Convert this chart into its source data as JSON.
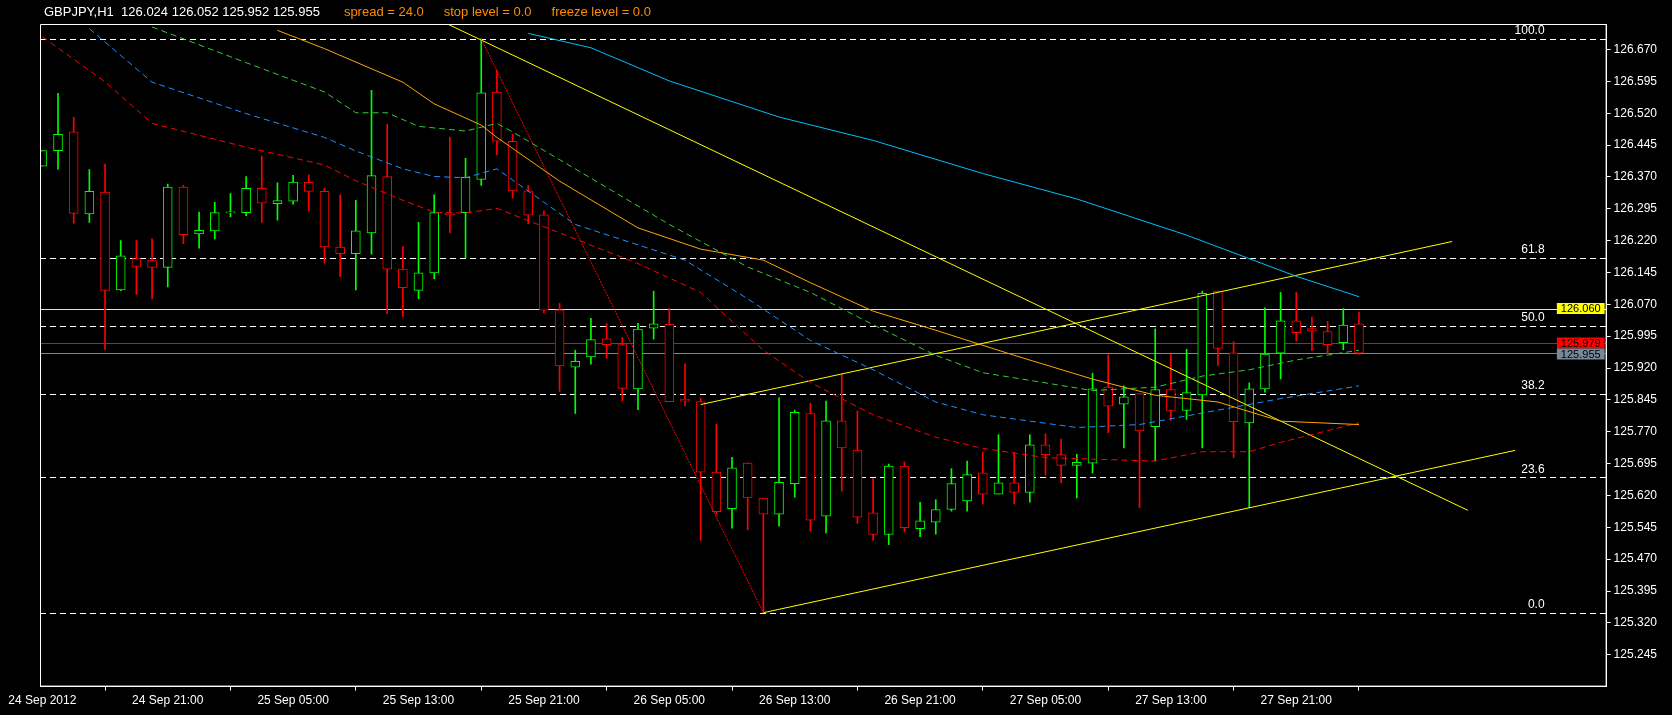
{
  "chart_data": {
    "type": "candlestick",
    "title": "GBPJPY,H1  126.024 126.052 125.952 125.955",
    "annotations": [
      "spread = 24.0",
      "stop level = 0.0",
      "freeze level = 0.0",
      {
        "text": "100.0",
        "y": 126.695
      },
      {
        "text": "61.8",
        "y": 126.179
      },
      {
        "text": "50.0",
        "y": 126.02
      },
      {
        "text": "38.2",
        "y": 125.86
      },
      {
        "text": "23.6",
        "y": 125.663
      },
      {
        "text": "0.0",
        "y": 125.344
      }
    ],
    "xlim": [
      "2012-09-24T12:51",
      "2012-09-28T16:48"
    ],
    "xticks": [
      {
        "value": "2012-09-24T13:00",
        "label": "24 Sep 2012"
      },
      {
        "value": "2012-09-24T21:00",
        "label": "24 Sep 21:00"
      },
      {
        "value": "2012-09-25T05:00",
        "label": "25 Sep 05:00"
      },
      {
        "value": "2012-09-25T13:00",
        "label": "25 Sep 13:00"
      },
      {
        "value": "2012-09-25T21:00",
        "label": "25 Sep 21:00"
      },
      {
        "value": "2012-09-26T05:00",
        "label": "26 Sep 05:00"
      },
      {
        "value": "2012-09-26T13:00",
        "label": "26 Sep 13:00"
      },
      {
        "value": "2012-09-26T21:00",
        "label": "26 Sep 21:00"
      },
      {
        "value": "2012-09-27T05:00",
        "label": "27 Sep 05:00"
      },
      {
        "value": "2012-09-27T13:00",
        "label": "27 Sep 13:00"
      },
      {
        "value": "2012-09-27T21:00",
        "label": "27 Sep 21:00"
      }
    ],
    "ylim": [
      125.17,
      126.73
    ],
    "yticks": [
      {
        "value": 125.245,
        "label": "125.245"
      },
      {
        "value": 125.32,
        "label": "125.320"
      },
      {
        "value": 125.395,
        "label": "125.395"
      },
      {
        "value": 125.47,
        "label": "125.470"
      },
      {
        "value": 125.545,
        "label": "125.545"
      },
      {
        "value": 125.62,
        "label": "125.620"
      },
      {
        "value": 125.695,
        "label": "125.695"
      },
      {
        "value": 125.77,
        "label": "125.770"
      },
      {
        "value": 125.845,
        "label": "125.845"
      },
      {
        "value": 125.92,
        "label": "125.920"
      },
      {
        "value": 125.995,
        "label": "125.995"
      },
      {
        "value": 126.07,
        "label": "126.070"
      },
      {
        "value": 126.145,
        "label": "126.145"
      },
      {
        "value": 126.22,
        "label": "126.220"
      },
      {
        "value": 126.295,
        "label": "126.295"
      },
      {
        "value": 126.37,
        "label": "126.370"
      },
      {
        "value": 126.445,
        "label": "126.445"
      },
      {
        "value": 126.52,
        "label": "126.520"
      },
      {
        "value": 126.595,
        "label": "126.595"
      },
      {
        "value": 126.67,
        "label": "126.670"
      }
    ],
    "grid": false,
    "legend": false,
    "ref_lines": [
      {
        "axis": "y",
        "value": 126.695,
        "color": "#ffffff",
        "line_style": "dashed"
      },
      {
        "axis": "y",
        "value": 126.179,
        "color": "#ffffff",
        "line_style": "dashed"
      },
      {
        "axis": "y",
        "value": 126.02,
        "color": "#ffffff",
        "line_style": "dashed"
      },
      {
        "axis": "y",
        "value": 125.86,
        "color": "#ffffff",
        "line_style": "dashed"
      },
      {
        "axis": "y",
        "value": 125.663,
        "color": "#ffffff",
        "line_style": "dashed"
      },
      {
        "axis": "y",
        "value": 125.344,
        "color": "#ffffff",
        "line_style": "dashed"
      },
      {
        "axis": "y",
        "value": 126.06,
        "label": "126.060",
        "color": "#ffff00",
        "line_style": "solid"
      },
      {
        "axis": "y",
        "value": 125.979,
        "label": "125.979",
        "color": "#ff0000",
        "line_style": "solid"
      },
      {
        "axis": "y",
        "value": 125.955,
        "label": "125.955",
        "color": "#778899",
        "line_style": "solid"
      }
    ],
    "series": [
      {
        "type": "line",
        "color": "#00bfff",
        "line_style": "solid",
        "x": [
          "2012-09-25T20:00",
          "2012-09-26T00:00",
          "2012-09-26T05:00",
          "2012-09-26T12:00",
          "2012-09-26T18:00",
          "2012-09-27T01:00",
          "2012-09-27T07:00",
          "2012-09-27T14:00",
          "2012-09-27T21:00",
          "2012-09-28T01:00"
        ],
        "values": [
          126.708,
          126.674,
          126.596,
          126.511,
          126.456,
          126.378,
          126.318,
          126.233,
          126.136,
          126.088
        ]
      },
      {
        "type": "line",
        "color": "#ffa500",
        "line_style": "solid",
        "x": [
          "2012-09-25T04:00",
          "2012-09-25T07:00",
          "2012-09-25T12:00",
          "2012-09-25T14:00",
          "2012-09-25T17:00",
          "2012-09-25T18:00",
          "2012-09-25T22:00",
          "2012-09-26T03:00",
          "2012-09-26T07:00",
          "2012-09-26T11:00",
          "2012-09-26T14:00",
          "2012-09-26T18:00",
          "2012-09-26T22:00",
          "2012-09-27T03:00",
          "2012-09-27T08:00",
          "2012-09-27T12:00",
          "2012-09-27T16:00",
          "2012-09-27T20:00",
          "2012-09-28T01:00"
        ],
        "values": [
          126.715,
          126.672,
          126.593,
          126.542,
          126.492,
          126.463,
          126.36,
          126.25,
          126.2,
          126.174,
          126.121,
          126.054,
          126.009,
          125.95,
          125.894,
          125.856,
          125.84,
          125.795,
          125.787
        ]
      },
      {
        "type": "line",
        "color": "#32cd32",
        "line_style": "dashed",
        "x": [
          "2012-09-24T20:00",
          "2012-09-25T02:00",
          "2012-09-25T07:00",
          "2012-09-25T09:00",
          "2012-09-25T11:00",
          "2012-09-25T13:00",
          "2012-09-25T16:00",
          "2012-09-25T18:00",
          "2012-09-25T19:00",
          "2012-09-26T05:00",
          "2012-09-26T10:00",
          "2012-09-26T14:00",
          "2012-09-26T18:00",
          "2012-09-26T22:00",
          "2012-09-27T01:00",
          "2012-09-27T08:00",
          "2012-09-27T12:00",
          "2012-09-27T15:00",
          "2012-09-27T18:00",
          "2012-09-27T21:00",
          "2012-09-28T01:00"
        ],
        "values": [
          126.723,
          126.639,
          126.57,
          126.521,
          126.521,
          126.489,
          126.478,
          126.496,
          126.476,
          126.258,
          126.158,
          126.098,
          126.022,
          125.95,
          125.909,
          125.867,
          125.875,
          125.901,
          125.916,
          125.939,
          125.962
        ]
      },
      {
        "type": "line",
        "color": "#1e90ff",
        "line_style": "dashed",
        "x": [
          "2012-09-24T16:00",
          "2012-09-24T20:00",
          "2012-09-25T02:00",
          "2012-09-25T07:00",
          "2012-09-25T09:00",
          "2012-09-25T12:00",
          "2012-09-25T14:00",
          "2012-09-25T16:00",
          "2012-09-25T18:00",
          "2012-09-25T23:00",
          "2012-09-26T06:00",
          "2012-09-26T10:00",
          "2012-09-26T14:00",
          "2012-09-26T18:00",
          "2012-09-26T22:00",
          "2012-09-27T01:00",
          "2012-09-27T07:00",
          "2012-09-27T11:00",
          "2012-09-27T15:00",
          "2012-09-27T20:00",
          "2012-09-28T01:00"
        ],
        "values": [
          126.719,
          126.593,
          126.519,
          126.463,
          126.431,
          126.389,
          126.371,
          126.368,
          126.389,
          126.258,
          126.174,
          126.083,
          125.985,
          125.916,
          125.84,
          125.81,
          125.78,
          125.787,
          125.814,
          125.848,
          125.878
        ]
      },
      {
        "type": "line",
        "color": "#ff0000",
        "line_style": "dashed",
        "x": [
          "2012-09-24T13:00",
          "2012-09-24T17:00",
          "2012-09-24T20:00",
          "2012-09-25T02:00",
          "2012-09-25T07:00",
          "2012-09-25T09:00",
          "2012-09-25T12:00",
          "2012-09-25T14:00",
          "2012-09-25T16:00",
          "2012-09-25T18:00",
          "2012-09-26T03:00",
          "2012-09-26T07:00",
          "2012-09-26T11:00",
          "2012-09-26T14:00",
          "2012-09-26T18:00",
          "2012-09-26T22:00",
          "2012-09-27T01:00",
          "2012-09-27T05:00",
          "2012-09-27T12:00",
          "2012-09-27T15:00",
          "2012-09-27T18:00",
          "2012-09-27T20:00",
          "2012-09-28T01:00"
        ],
        "values": [
          126.7,
          126.594,
          126.496,
          126.44,
          126.398,
          126.361,
          126.315,
          126.287,
          126.285,
          126.296,
          126.166,
          126.098,
          125.962,
          125.886,
          125.81,
          125.757,
          125.731,
          125.709,
          125.701,
          125.723,
          125.723,
          125.745,
          125.791
        ]
      },
      {
        "type": "line",
        "color": "#ff0000",
        "line_style": "dotted",
        "x": [
          "2012-09-25T17:00",
          "2012-09-26T11:00"
        ],
        "values": [
          126.695,
          125.344
        ]
      },
      {
        "type": "line",
        "color": "#ffff00",
        "line_style": "solid",
        "x": [
          "2012-09-25T14:51",
          "2012-09-28T07:57"
        ],
        "values": [
          126.73,
          125.585
        ]
      },
      {
        "type": "line",
        "color": "#ffff00",
        "line_style": "solid",
        "x": [
          "2012-09-26T07:00",
          "2012-09-28T06:57"
        ],
        "values": [
          125.834,
          126.218
        ]
      },
      {
        "type": "line",
        "color": "#ffff00",
        "line_style": "solid",
        "x": [
          "2012-09-26T11:00",
          "2012-09-28T10:57"
        ],
        "values": [
          125.344,
          125.726
        ]
      },
      {
        "x": [
          "2012-09-24T13:00",
          "2012-09-24T14:00",
          "2012-09-24T15:00",
          "2012-09-24T16:00",
          "2012-09-24T17:00",
          "2012-09-24T18:00",
          "2012-09-24T19:00",
          "2012-09-24T20:00",
          "2012-09-24T21:00",
          "2012-09-24T22:00",
          "2012-09-24T23:00",
          "2012-09-25T00:00",
          "2012-09-25T01:00",
          "2012-09-25T02:00",
          "2012-09-25T03:00",
          "2012-09-25T04:00",
          "2012-09-25T05:00",
          "2012-09-25T06:00",
          "2012-09-25T07:00",
          "2012-09-25T08:00",
          "2012-09-25T09:00",
          "2012-09-25T10:00",
          "2012-09-25T11:00",
          "2012-09-25T12:00",
          "2012-09-25T13:00",
          "2012-09-25T14:00",
          "2012-09-25T15:00",
          "2012-09-25T16:00",
          "2012-09-25T17:00",
          "2012-09-25T18:00",
          "2012-09-25T19:00",
          "2012-09-25T20:00",
          "2012-09-25T21:00",
          "2012-09-25T22:00",
          "2012-09-25T23:00",
          "2012-09-26T00:00",
          "2012-09-26T01:00",
          "2012-09-26T02:00",
          "2012-09-26T03:00",
          "2012-09-26T04:00",
          "2012-09-26T05:00",
          "2012-09-26T06:00",
          "2012-09-26T07:00",
          "2012-09-26T08:00",
          "2012-09-26T09:00",
          "2012-09-26T10:00",
          "2012-09-26T11:00",
          "2012-09-26T12:00",
          "2012-09-26T13:00",
          "2012-09-26T14:00",
          "2012-09-26T15:00",
          "2012-09-26T16:00",
          "2012-09-26T17:00",
          "2012-09-26T18:00",
          "2012-09-26T19:00",
          "2012-09-26T20:00",
          "2012-09-26T21:00",
          "2012-09-26T22:00",
          "2012-09-26T23:00",
          "2012-09-27T00:00",
          "2012-09-27T01:00",
          "2012-09-27T02:00",
          "2012-09-27T03:00",
          "2012-09-27T04:00",
          "2012-09-27T05:00",
          "2012-09-27T06:00",
          "2012-09-27T07:00",
          "2012-09-27T08:00",
          "2012-09-27T09:00",
          "2012-09-27T10:00",
          "2012-09-27T11:00",
          "2012-09-27T12:00",
          "2012-09-27T13:00",
          "2012-09-27T14:00",
          "2012-09-27T15:00",
          "2012-09-27T16:00",
          "2012-09-27T17:00",
          "2012-09-27T18:00",
          "2012-09-27T19:00",
          "2012-09-27T20:00",
          "2012-09-27T21:00",
          "2012-09-27T22:00",
          "2012-09-27T23:00",
          "2012-09-28T00:00",
          "2012-09-28T01:00"
        ],
        "ohlc": [
          [
            126.395,
            126.432,
            126.395,
            126.432
          ],
          [
            126.432,
            126.567,
            126.388,
            126.47
          ],
          [
            126.476,
            126.51,
            126.261,
            126.284
          ],
          [
            126.283,
            126.387,
            126.263,
            126.336
          ],
          [
            126.334,
            126.4,
            125.963,
            126.103
          ],
          [
            126.104,
            126.22,
            126.102,
            126.184
          ],
          [
            126.178,
            126.22,
            126.093,
            126.159
          ],
          [
            126.173,
            126.224,
            126.083,
            126.157
          ],
          [
            126.157,
            126.353,
            126.111,
            126.346
          ],
          [
            126.346,
            126.35,
            126.213,
            126.234
          ],
          [
            126.236,
            126.287,
            126.202,
            126.244
          ],
          [
            126.243,
            126.31,
            126.224,
            126.286
          ],
          [
            126.285,
            126.331,
            126.276,
            126.288
          ],
          [
            126.286,
            126.371,
            126.279,
            126.343
          ],
          [
            126.343,
            126.419,
            126.263,
            126.308
          ],
          [
            126.307,
            126.356,
            126.268,
            126.314
          ],
          [
            126.313,
            126.374,
            126.306,
            126.358
          ],
          [
            126.357,
            126.375,
            126.29,
            126.336
          ],
          [
            126.336,
            126.343,
            126.167,
            126.205
          ],
          [
            126.205,
            126.328,
            126.136,
            126.189
          ],
          [
            126.189,
            126.315,
            126.104,
            126.243
          ],
          [
            126.238,
            126.574,
            126.188,
            126.373
          ],
          [
            126.371,
            126.494,
            126.048,
            126.153
          ],
          [
            126.153,
            126.206,
            126.041,
            126.109
          ],
          [
            126.103,
            126.263,
            126.083,
            126.144
          ],
          [
            126.144,
            126.328,
            126.13,
            126.286
          ],
          [
            126.285,
            126.463,
            126.238,
            126.281
          ],
          [
            126.286,
            126.414,
            126.18,
            126.369
          ],
          [
            126.364,
            126.695,
            126.35,
            126.568
          ],
          [
            126.57,
            126.621,
            126.422,
            126.454
          ],
          [
            126.454,
            126.47,
            126.32,
            126.337
          ],
          [
            126.337,
            126.35,
            126.26,
            126.28
          ],
          [
            126.281,
            126.29,
            126.05,
            126.056
          ],
          [
            126.057,
            126.072,
            125.865,
            125.925
          ],
          [
            125.922,
            125.962,
            125.813,
            125.936
          ],
          [
            125.946,
            126.037,
            125.929,
            125.987
          ],
          [
            125.989,
            126.025,
            125.943,
            125.975
          ],
          [
            125.975,
            125.992,
            125.843,
            125.872
          ],
          [
            125.871,
            126.025,
            125.822,
            126.012
          ],
          [
            126.014,
            126.101,
            125.988,
            126.024
          ],
          [
            126.023,
            126.06,
            125.841,
            125.841
          ],
          [
            125.847,
            125.93,
            125.831,
            125.842
          ],
          [
            125.841,
            125.85,
            125.514,
            125.675
          ],
          [
            125.675,
            125.788,
            125.576,
            125.582
          ],
          [
            125.589,
            125.71,
            125.543,
            125.685
          ],
          [
            125.696,
            125.697,
            125.539,
            125.614
          ],
          [
            125.614,
            125.614,
            125.344,
            125.576
          ],
          [
            125.576,
            125.85,
            125.548,
            125.651
          ],
          [
            125.648,
            125.821,
            125.616,
            125.816
          ],
          [
            125.813,
            125.837,
            125.536,
            125.562
          ],
          [
            125.571,
            125.842,
            125.532,
            125.796
          ],
          [
            125.796,
            125.906,
            125.63,
            125.732
          ],
          [
            125.727,
            125.819,
            125.554,
            125.569
          ],
          [
            125.579,
            125.66,
            125.514,
            125.528
          ],
          [
            125.528,
            125.694,
            125.504,
            125.689
          ],
          [
            125.689,
            125.699,
            125.534,
            125.544
          ],
          [
            125.542,
            125.604,
            125.523,
            125.56
          ],
          [
            125.557,
            125.61,
            125.529,
            125.587
          ],
          [
            125.587,
            125.683,
            125.583,
            125.648
          ],
          [
            125.607,
            125.701,
            125.583,
            125.669
          ],
          [
            125.673,
            125.722,
            125.6,
            125.623
          ],
          [
            125.623,
            125.763,
            125.623,
            125.65
          ],
          [
            125.65,
            125.721,
            125.6,
            125.627
          ],
          [
            125.627,
            125.763,
            125.604,
            125.739
          ],
          [
            125.739,
            125.765,
            125.668,
            125.716
          ],
          [
            125.716,
            125.753,
            125.65,
            125.691
          ],
          [
            125.691,
            125.717,
            125.614,
            125.698
          ],
          [
            125.696,
            125.908,
            125.673,
            125.871
          ],
          [
            125.875,
            125.951,
            125.768,
            125.83
          ],
          [
            125.835,
            125.878,
            125.732,
            125.852
          ],
          [
            125.86,
            125.86,
            125.591,
            125.772
          ],
          [
            125.782,
            126.012,
            125.702,
            125.869
          ],
          [
            125.869,
            125.953,
            125.797,
            125.82
          ],
          [
            125.82,
            125.964,
            125.799,
            125.862
          ],
          [
            125.857,
            126.101,
            125.732,
            126.096
          ],
          [
            126.101,
            126.102,
            125.926,
            125.966
          ],
          [
            125.956,
            125.982,
            125.709,
            125.794
          ],
          [
            125.791,
            125.885,
            125.591,
            125.871
          ],
          [
            125.871,
            126.062,
            125.863,
            125.953
          ],
          [
            125.955,
            126.098,
            125.894,
            126.031
          ],
          [
            126.031,
            126.098,
            125.984,
            126.003
          ],
          [
            126.013,
            126.04,
            125.961,
            126.007
          ],
          [
            126.006,
            126.03,
            125.954,
            125.975
          ],
          [
            125.98,
            126.06,
            125.963,
            126.021
          ],
          [
            126.024,
            126.052,
            125.952,
            125.955
          ]
        ],
        "colors": [
          "#00ff00",
          "#00ff00",
          "#ff0000",
          "#00ff00",
          "#ff0000",
          "#00ff00",
          "#ff0000",
          "#ff0000",
          "#00ff00",
          "#ff0000",
          "#00ff00",
          "#00ff00",
          "#00ff00",
          "#00ff00",
          "#ff0000",
          "#00ff00",
          "#00ff00",
          "#ff0000",
          "#ff0000",
          "#ff0000",
          "#00ff00",
          "#00ff00",
          "#ff0000",
          "#ff0000",
          "#00ff00",
          "#00ff00",
          "#ff0000",
          "#00ff00",
          "#00ff00",
          "#ff0000",
          "#ff0000",
          "#ff0000",
          "#ff0000",
          "#ff0000",
          "#00ff00",
          "#00ff00",
          "#ff0000",
          "#ff0000",
          "#00ff00",
          "#00ff00",
          "#ff0000",
          "#ff0000",
          "#ff0000",
          "#ff0000",
          "#00ff00",
          "#ff0000",
          "#ff0000",
          "#00ff00",
          "#00ff00",
          "#ff0000",
          "#00ff00",
          "#ff0000",
          "#ff0000",
          "#ff0000",
          "#00ff00",
          "#ff0000",
          "#00ff00",
          "#00ff00",
          "#00ff00",
          "#00ff00",
          "#ff0000",
          "#00ff00",
          "#ff0000",
          "#00ff00",
          "#ff0000",
          "#ff0000",
          "#00ff00",
          "#00ff00",
          "#ff0000",
          "#00ff00",
          "#ff0000",
          "#00ff00",
          "#ff0000",
          "#00ff00",
          "#00ff00",
          "#ff0000",
          "#ff0000",
          "#00ff00",
          "#00ff00",
          "#00ff00",
          "#ff0000",
          "#ff0000",
          "#ff0000",
          "#00ff00",
          "#ff0000"
        ]
      }
    ]
  }
}
